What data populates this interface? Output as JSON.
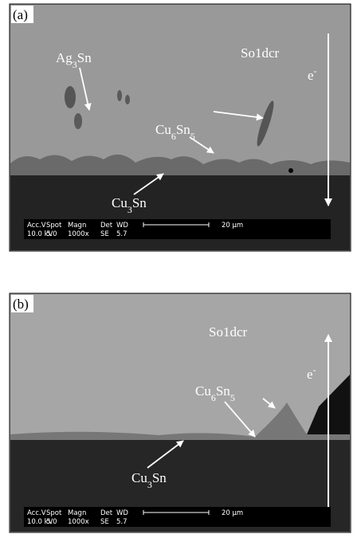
{
  "panels": [
    {
      "label": "(a)",
      "annotations": [
        {
          "parts": [
            "Ag",
            "3",
            "Sn"
          ]
        },
        {
          "parts": [
            "So1dcr"
          ]
        },
        {
          "parts": [
            "e",
            "-"
          ]
        },
        {
          "parts": [
            "Cu",
            "6",
            "Sn",
            "5"
          ]
        },
        {
          "parts": [
            "Cu",
            "3",
            "Sn"
          ]
        }
      ],
      "info": {
        "headers": [
          "Acc.V",
          "Spot",
          "Magn",
          "Det",
          "WD"
        ],
        "values": [
          "10.0 kV",
          "5.0",
          "1000x",
          "SE",
          "5.7"
        ],
        "scale": "20 µm"
      }
    },
    {
      "label": "(b)",
      "annotations": [
        {
          "parts": [
            "So1dcr"
          ]
        },
        {
          "parts": [
            "e",
            "-"
          ]
        },
        {
          "parts": [
            "Cu",
            "6",
            "Sn",
            "5"
          ]
        },
        {
          "parts": [
            "Cu",
            "3",
            "Sn"
          ]
        }
      ],
      "info": {
        "headers": [
          "Acc.V",
          "Spot",
          "Magn",
          "Det",
          "WD"
        ],
        "values": [
          "10.0 kV",
          "5.0",
          "1000x",
          "SE",
          "5.7"
        ],
        "scale": "20 µm"
      }
    }
  ]
}
